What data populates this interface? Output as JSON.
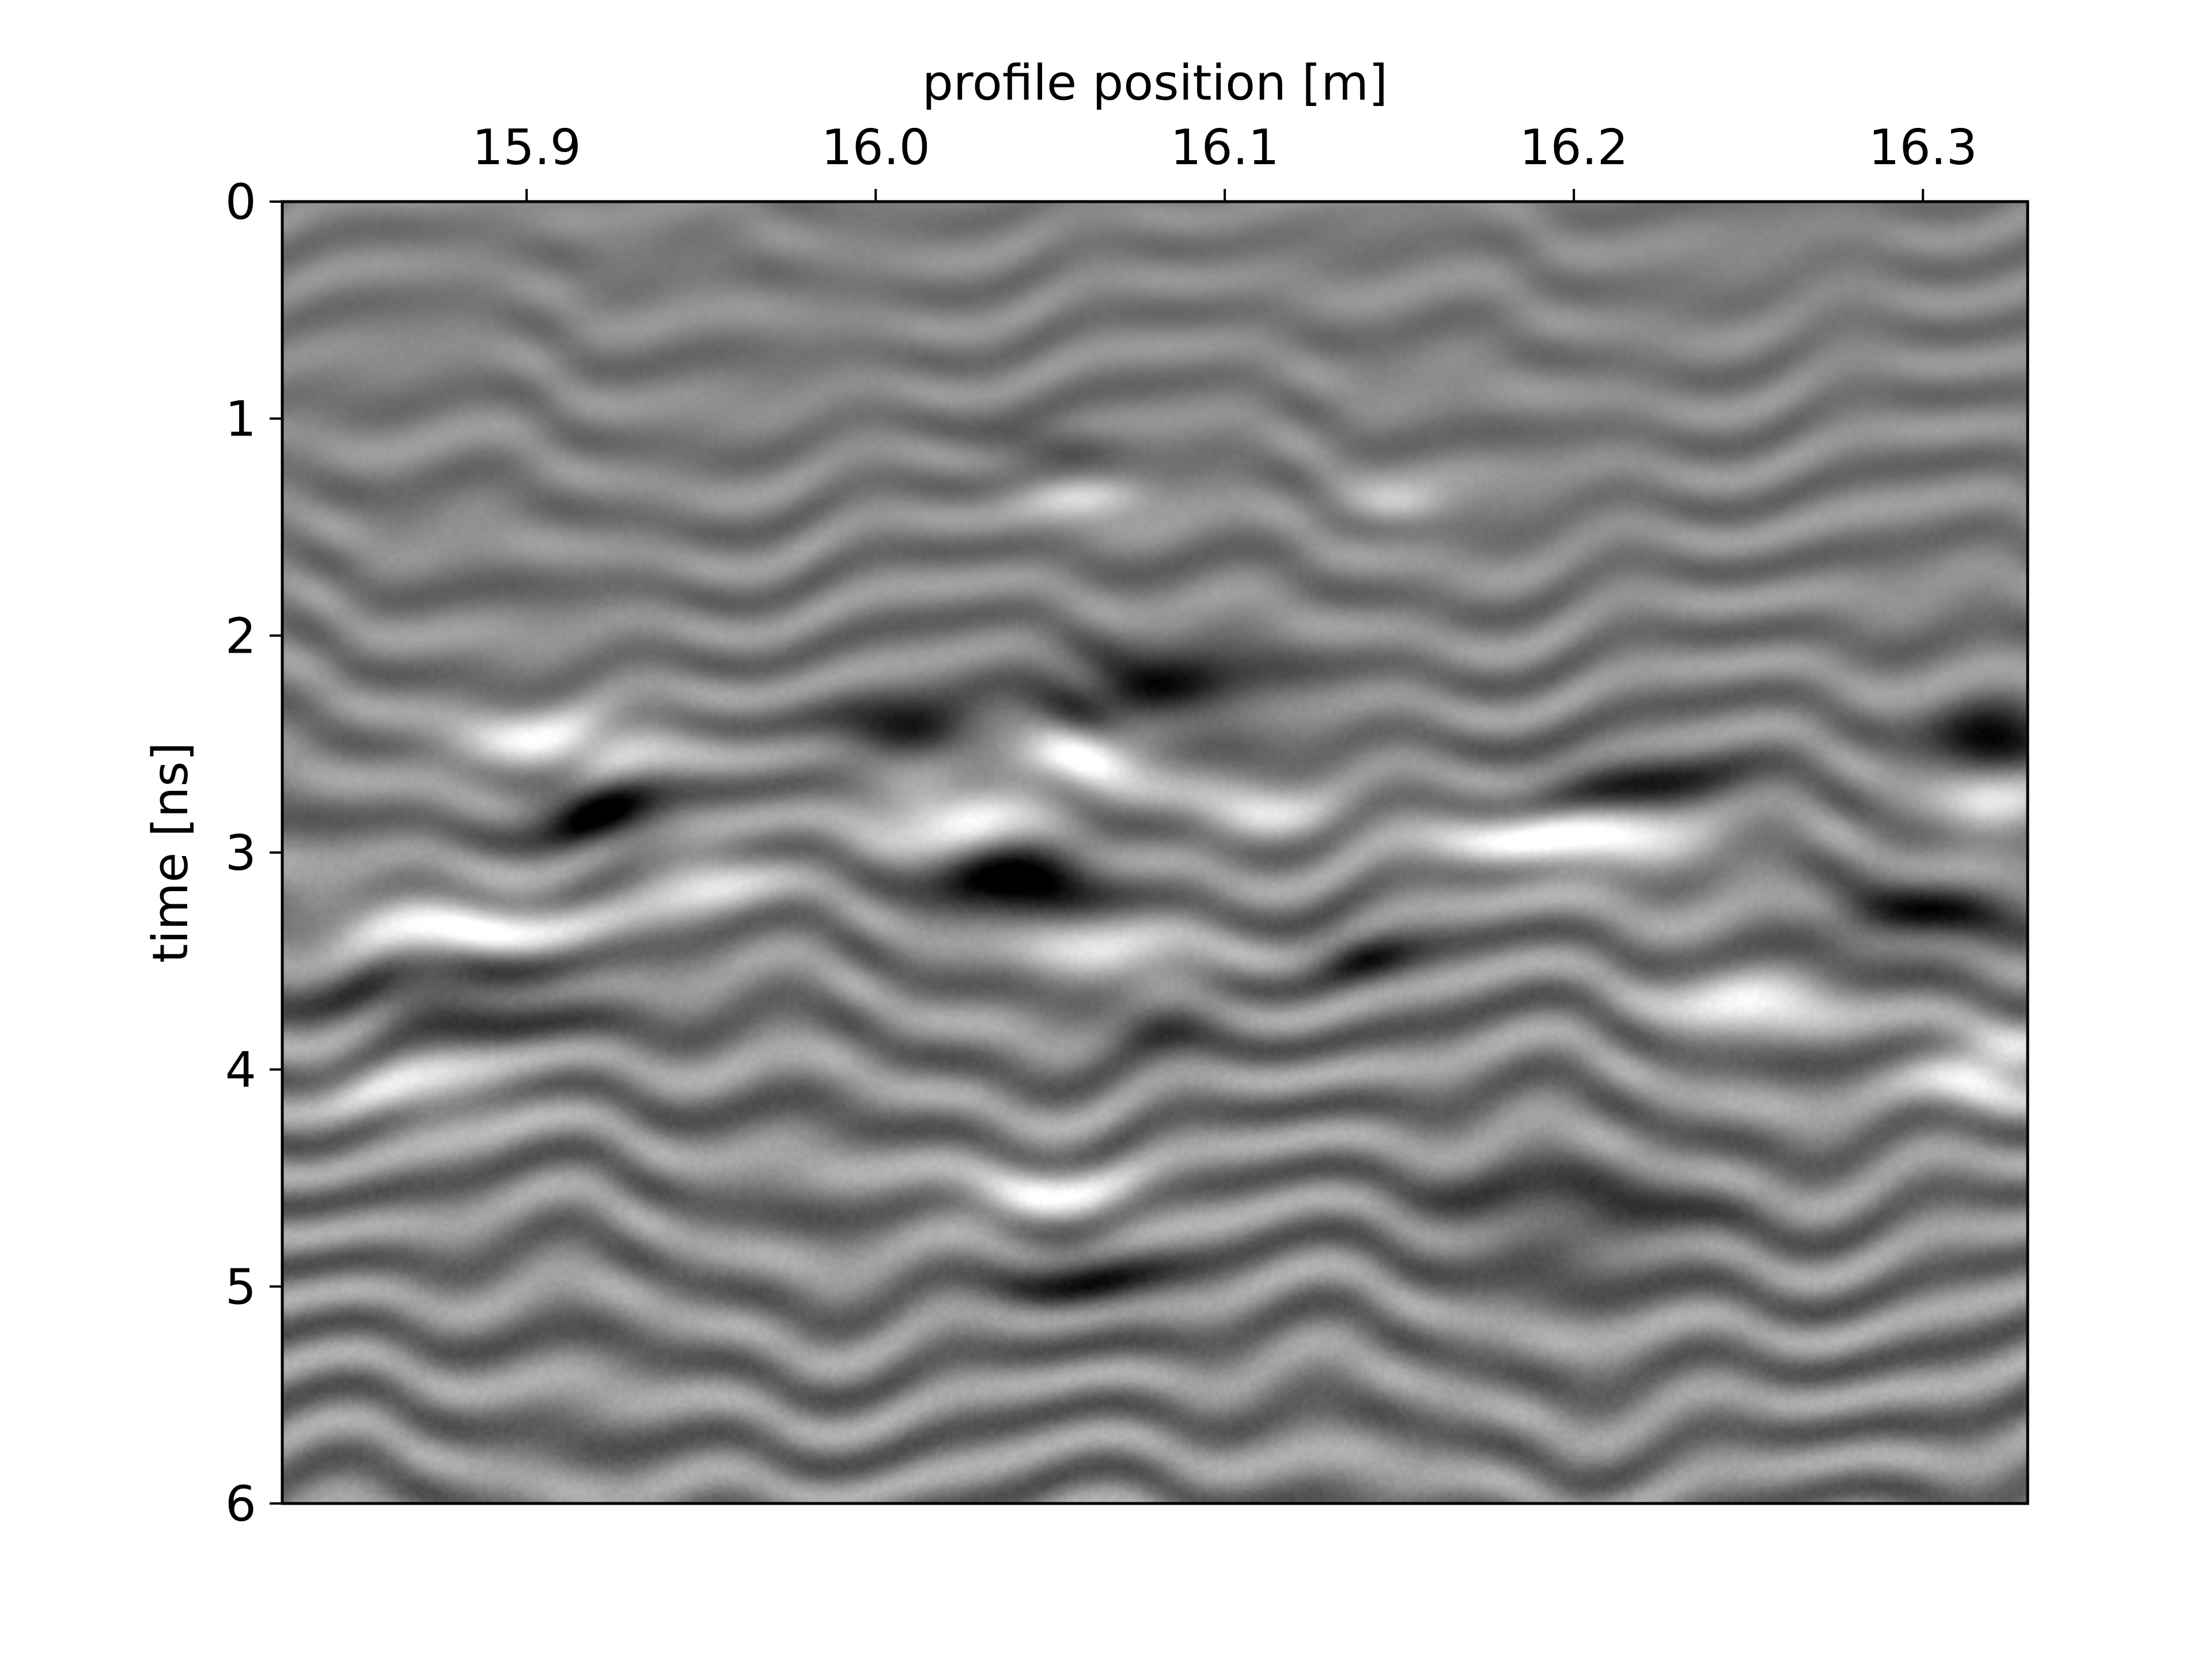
{
  "chart_data": {
    "type": "heatmap",
    "title": "",
    "xlabel": "profile position [m]",
    "ylabel": "time [ns]",
    "xlabel_position": "top",
    "xlim": [
      15.83,
      16.33
    ],
    "ylim": [
      6,
      0
    ],
    "x_ticks": [
      15.9,
      16.0,
      16.1,
      16.2,
      16.3
    ],
    "x_tick_labels": [
      "15.9",
      "16.0",
      "16.1",
      "16.2",
      "16.3"
    ],
    "y_ticks": [
      0,
      1,
      2,
      3,
      4,
      5,
      6
    ],
    "y_tick_labels": [
      "0",
      "1",
      "2",
      "3",
      "4",
      "5",
      "6"
    ],
    "colormap": "gray",
    "grid": false,
    "legend": "none",
    "features": [
      {
        "kind": "dark",
        "x": 15.92,
        "t": 2.8,
        "w": 0.025,
        "h": 0.22,
        "amp": 1.0
      },
      {
        "kind": "dark",
        "x": 16.04,
        "t": 3.13,
        "w": 0.028,
        "h": 0.22,
        "amp": 1.0
      },
      {
        "kind": "dark",
        "x": 16.08,
        "t": 2.26,
        "w": 0.04,
        "h": 0.22,
        "amp": 0.9
      },
      {
        "kind": "dark",
        "x": 16.01,
        "t": 2.44,
        "w": 0.028,
        "h": 0.18,
        "amp": 0.8
      },
      {
        "kind": "dark",
        "x": 16.32,
        "t": 2.5,
        "w": 0.02,
        "h": 0.2,
        "amp": 0.95
      },
      {
        "kind": "dark",
        "x": 16.3,
        "t": 3.3,
        "w": 0.035,
        "h": 0.2,
        "amp": 0.7
      },
      {
        "kind": "dark",
        "x": 16.22,
        "t": 2.68,
        "w": 0.04,
        "h": 0.18,
        "amp": 0.6
      },
      {
        "kind": "dark",
        "x": 15.88,
        "t": 3.65,
        "w": 0.05,
        "h": 0.22,
        "amp": 0.6
      },
      {
        "kind": "dark",
        "x": 16.14,
        "t": 3.48,
        "w": 0.02,
        "h": 0.15,
        "amp": 0.6
      },
      {
        "kind": "dark",
        "x": 16.08,
        "t": 3.78,
        "w": 0.025,
        "h": 0.18,
        "amp": 0.5
      },
      {
        "kind": "dark",
        "x": 16.06,
        "t": 4.95,
        "w": 0.03,
        "h": 0.22,
        "amp": 0.6
      },
      {
        "kind": "dark",
        "x": 16.2,
        "t": 4.7,
        "w": 0.05,
        "h": 0.25,
        "amp": 0.5
      },
      {
        "kind": "dark",
        "x": 16.05,
        "t": 1.12,
        "w": 0.025,
        "h": 0.12,
        "amp": 0.5
      },
      {
        "kind": "bright",
        "x": 15.91,
        "t": 2.52,
        "w": 0.04,
        "h": 0.2,
        "amp": 0.9
      },
      {
        "kind": "bright",
        "x": 16.02,
        "t": 2.82,
        "w": 0.03,
        "h": 0.2,
        "amp": 0.95
      },
      {
        "kind": "bright",
        "x": 16.06,
        "t": 2.57,
        "w": 0.03,
        "h": 0.18,
        "amp": 0.95
      },
      {
        "kind": "bright",
        "x": 16.2,
        "t": 2.95,
        "w": 0.05,
        "h": 0.2,
        "amp": 0.95
      },
      {
        "kind": "bright",
        "x": 15.88,
        "t": 3.35,
        "w": 0.05,
        "h": 0.2,
        "amp": 0.9
      },
      {
        "kind": "bright",
        "x": 15.95,
        "t": 3.1,
        "w": 0.025,
        "h": 0.18,
        "amp": 0.7
      },
      {
        "kind": "bright",
        "x": 16.07,
        "t": 3.5,
        "w": 0.035,
        "h": 0.18,
        "amp": 0.7
      },
      {
        "kind": "bright",
        "x": 16.32,
        "t": 4.0,
        "w": 0.025,
        "h": 0.2,
        "amp": 0.95
      },
      {
        "kind": "bright",
        "x": 16.32,
        "t": 2.8,
        "w": 0.02,
        "h": 0.2,
        "amp": 0.85
      },
      {
        "kind": "bright",
        "x": 16.25,
        "t": 3.7,
        "w": 0.03,
        "h": 0.2,
        "amp": 0.7
      },
      {
        "kind": "bright",
        "x": 16.06,
        "t": 1.35,
        "w": 0.025,
        "h": 0.12,
        "amp": 0.7
      },
      {
        "kind": "bright",
        "x": 16.15,
        "t": 1.4,
        "w": 0.02,
        "h": 0.12,
        "amp": 0.6
      },
      {
        "kind": "bright",
        "x": 16.05,
        "t": 4.6,
        "w": 0.035,
        "h": 0.2,
        "amp": 0.7
      },
      {
        "kind": "bright",
        "x": 15.87,
        "t": 4.1,
        "w": 0.035,
        "h": 0.2,
        "amp": 0.6
      },
      {
        "kind": "bright",
        "x": 16.11,
        "t": 2.82,
        "w": 0.025,
        "h": 0.16,
        "amp": 0.6
      }
    ]
  }
}
